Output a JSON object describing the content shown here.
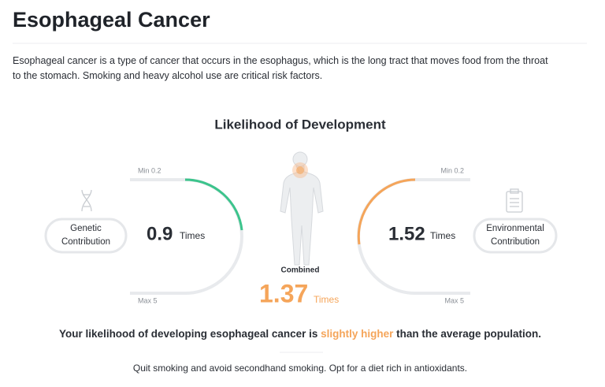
{
  "header": {
    "title": "Esophageal Cancer"
  },
  "description": "Esophageal cancer is a type of cancer that occurs in the esophagus, which is the long tract that moves food from the throat to the stomach. Smoking and heavy alcohol use are critical risk factors.",
  "section_title": "Likelihood of Development",
  "genetic": {
    "label_lines": [
      "Genetic",
      "Contribution"
    ],
    "value": 0.9,
    "unit": "Times",
    "min_label": "Min 0.2",
    "max_label": "Max 5"
  },
  "environmental": {
    "label_lines": [
      "Environmental",
      "Contribution"
    ],
    "value": 1.52,
    "unit": "Times",
    "min_label": "Min 0.2",
    "max_label": "Max 5"
  },
  "combined": {
    "label": "Combined",
    "value": 1.37,
    "unit": "Times"
  },
  "summary": {
    "before": "Your likelihood of developing esophageal cancer is",
    "highlight": "slightly higher",
    "after": "than the average population."
  },
  "advice": "Quit smoking and avoid secondhand smoking. Opt for a diet rich in antioxidants."
}
